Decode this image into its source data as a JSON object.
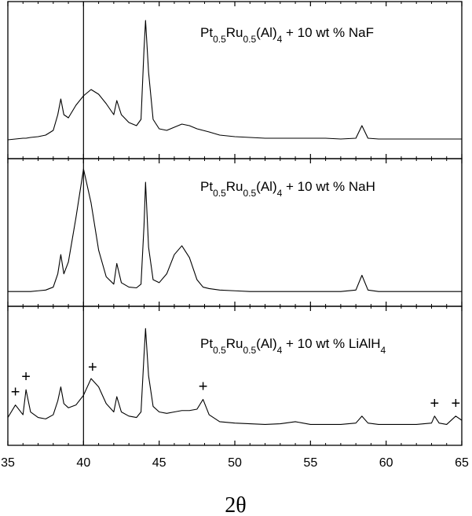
{
  "chart_data": {
    "type": "line",
    "xlabel": "2θ",
    "xlim": [
      35,
      65
    ],
    "xticks": [
      35,
      40,
      45,
      50,
      55,
      60,
      65
    ],
    "xminorticks": [
      36,
      37,
      38,
      39,
      41,
      42,
      43,
      44,
      46,
      47,
      48,
      49,
      51,
      52,
      53,
      54,
      56,
      57,
      58,
      59,
      61,
      62,
      63,
      64
    ],
    "ylim": [
      0,
      100
    ],
    "color": "#000000",
    "vline": 40,
    "x": [
      35,
      35.5,
      36,
      36.2,
      36.5,
      37,
      37.5,
      38,
      38.3,
      38.5,
      38.7,
      39,
      39.5,
      40,
      40.5,
      41,
      41.5,
      42,
      42.2,
      42.5,
      43,
      43.5,
      43.8,
      44,
      44.1,
      44.3,
      44.6,
      45,
      45.5,
      46,
      46.5,
      47,
      47.5,
      47.9,
      48.3,
      49,
      50,
      51,
      52,
      53,
      54,
      55,
      56,
      57,
      58,
      58.4,
      58.8,
      59.5,
      60,
      61,
      62,
      63,
      63.2,
      63.5,
      64,
      64.6,
      65
    ],
    "panels": [
      {
        "label": [
          "Pt",
          "0.5",
          "Ru",
          "0.5",
          "(Al)",
          "4",
          " + 10 wt % NaF"
        ],
        "values": [
          12,
          12.5,
          13,
          13,
          13.5,
          14,
          15,
          18,
          28,
          38,
          28,
          26,
          34,
          40,
          44,
          41,
          35,
          28,
          37,
          28,
          23,
          21,
          25,
          70,
          88,
          55,
          25,
          19,
          18,
          20,
          22,
          21,
          19,
          18,
          17,
          15,
          14,
          13.5,
          13,
          13,
          13,
          13,
          13,
          12.5,
          13,
          21,
          13,
          12.5,
          12.5,
          12.5,
          12.5,
          12.5,
          12.5,
          12.5,
          12.5,
          12.5,
          12.5
        ]
      },
      {
        "label": [
          "Pt",
          "0.5",
          "Ru",
          "0.5",
          "(Al)",
          "4",
          " + 10 wt % NaH"
        ],
        "values": [
          10,
          10,
          10,
          10,
          10,
          10.5,
          11,
          13,
          22,
          35,
          22,
          30,
          60,
          93,
          70,
          38,
          20,
          15,
          29,
          16,
          13,
          12.5,
          15,
          55,
          84,
          40,
          18,
          16,
          22,
          35,
          41,
          33,
          18,
          13,
          12,
          11,
          10.5,
          10,
          10,
          10,
          10,
          10,
          10,
          10,
          11,
          21,
          11,
          10,
          10,
          10,
          10,
          10,
          10,
          10,
          10,
          10,
          10
        ]
      },
      {
        "label": [
          "Pt",
          "0.5",
          "Ru",
          "0.5",
          "(Al)",
          "4",
          " + 10 wt % LiAlH",
          "4"
        ],
        "values": [
          20,
          29,
          22,
          40,
          24,
          20,
          19,
          22,
          32,
          42,
          30,
          27,
          29,
          36,
          48,
          42,
          30,
          24,
          35,
          24,
          21,
          20,
          24,
          65,
          84,
          50,
          28,
          24,
          23,
          24,
          25,
          25,
          26,
          33,
          22,
          17,
          16,
          15.5,
          15,
          15.5,
          17,
          15,
          15,
          15,
          16,
          21,
          16,
          15,
          15,
          15,
          15,
          16,
          21,
          16,
          15,
          21,
          18
        ],
        "markers": {
          "text": "+",
          "x": [
            35.5,
            36.2,
            40.6,
            47.9,
            63.2,
            64.6
          ]
        }
      }
    ]
  }
}
